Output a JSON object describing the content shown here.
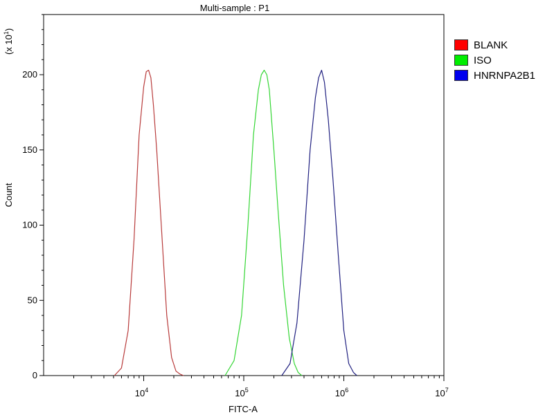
{
  "chart_data": {
    "type": "line",
    "title": "Multi-sample : P1",
    "xlabel": "FITC-A",
    "ylabel": "Count",
    "y_multiplier_label": "(x 10",
    "y_multiplier_exp": "1",
    "x_scale": "log",
    "xlim": [
      1000,
      10000000
    ],
    "ylim": [
      0,
      240
    ],
    "x_ticks": [
      {
        "value": 10000,
        "base": "10",
        "exp": "4"
      },
      {
        "value": 100000,
        "base": "10",
        "exp": "5"
      },
      {
        "value": 1000000,
        "base": "10",
        "exp": "6"
      },
      {
        "value": 10000000,
        "base": "10",
        "exp": "7"
      }
    ],
    "y_ticks": [
      0,
      50,
      100,
      150,
      200
    ],
    "grid": false,
    "legend_position": "right",
    "series": [
      {
        "name": "BLANK",
        "color": "#b83a3a",
        "swatch": "#ff0000",
        "x": [
          5100,
          6000,
          7000,
          8000,
          9000,
          10000,
          10600,
          11200,
          11800,
          12500,
          13500,
          15000,
          17000,
          19000,
          21000,
          23000,
          25000
        ],
        "y": [
          0,
          5,
          30,
          90,
          160,
          192,
          202,
          203,
          198,
          180,
          150,
          100,
          40,
          12,
          3,
          1,
          0
        ]
      },
      {
        "name": "ISO",
        "color": "#33d633",
        "swatch": "#00ee00",
        "x": [
          65000,
          80000,
          95000,
          110000,
          125000,
          140000,
          150000,
          160000,
          170000,
          180000,
          200000,
          220000,
          250000,
          285000,
          320000,
          350000,
          380000
        ],
        "y": [
          0,
          10,
          40,
          100,
          160,
          190,
          200,
          203,
          200,
          190,
          150,
          110,
          60,
          25,
          8,
          2,
          0
        ]
      },
      {
        "name": "HNRNPA2B1",
        "color": "#202080",
        "swatch": "#0000ee",
        "x": [
          240000,
          290000,
          340000,
          400000,
          460000,
          520000,
          560000,
          600000,
          640000,
          700000,
          780000,
          880000,
          1000000,
          1120000,
          1250000,
          1350000
        ],
        "y": [
          0,
          8,
          35,
          90,
          150,
          185,
          198,
          203,
          195,
          170,
          130,
          80,
          30,
          8,
          2,
          0
        ]
      }
    ]
  }
}
